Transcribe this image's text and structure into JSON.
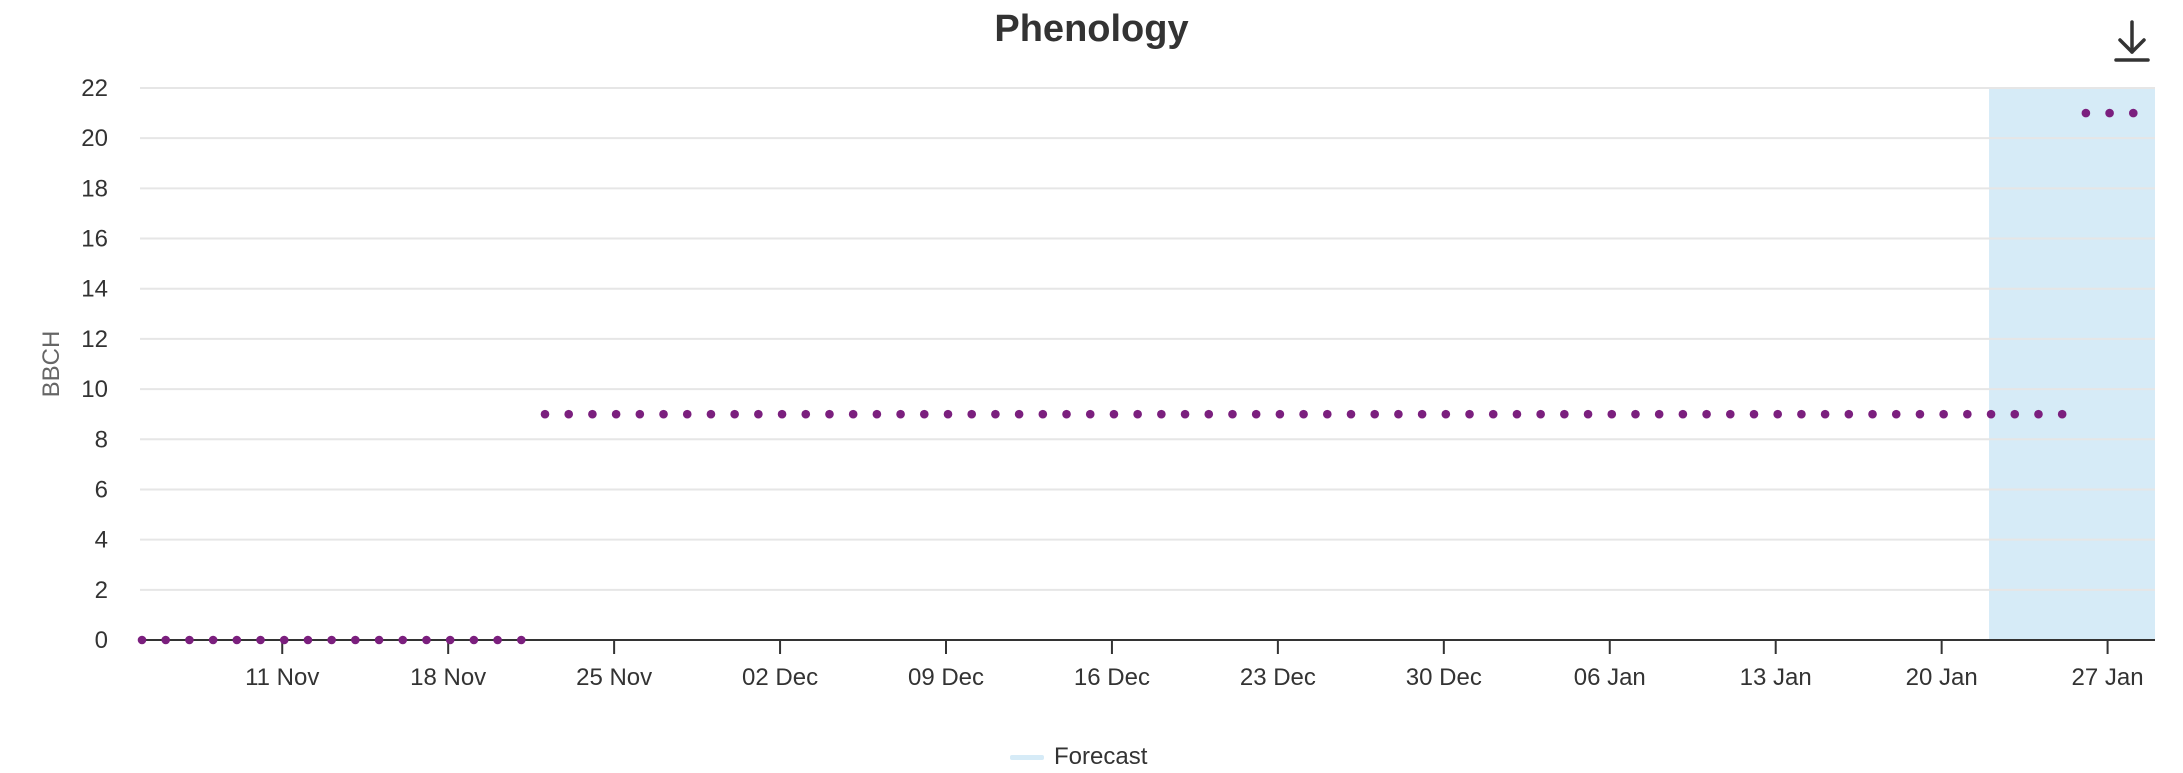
{
  "chart_data": {
    "type": "scatter",
    "title": "Phenology",
    "ylabel": "BBCH",
    "xlabel": "",
    "ylim": [
      0,
      22
    ],
    "y_ticks": [
      0,
      2,
      4,
      6,
      8,
      10,
      12,
      14,
      16,
      18,
      20,
      22
    ],
    "x_range": [
      "Nov 05",
      "Jan 29"
    ],
    "x_ticks": [
      {
        "date": "Nov 11",
        "label": "11 Nov"
      },
      {
        "date": "Nov 18",
        "label": "18 Nov"
      },
      {
        "date": "Nov 25",
        "label": "25 Nov"
      },
      {
        "date": "Dec 02",
        "label": "02 Dec"
      },
      {
        "date": "Dec 09",
        "label": "09 Dec"
      },
      {
        "date": "Dec 16",
        "label": "16 Dec"
      },
      {
        "date": "Dec 23",
        "label": "23 Dec"
      },
      {
        "date": "Dec 30",
        "label": "30 Dec"
      },
      {
        "date": "Jan 06",
        "label": "06 Jan"
      },
      {
        "date": "Jan 13",
        "label": "13 Jan"
      },
      {
        "date": "Jan 20",
        "label": "20 Jan"
      },
      {
        "date": "Jan 27",
        "label": "27 Jan"
      }
    ],
    "grid": true,
    "series": [
      {
        "color": "#7b1f7e",
        "segments": [
          {
            "from": "Nov 05",
            "to": "Nov 21",
            "value": 0
          },
          {
            "from": "Nov 22",
            "to": "Jan 25",
            "value": 9
          },
          {
            "from": "Jan 26",
            "to": "Jan 28",
            "value": 21
          }
        ]
      }
    ],
    "bands": [
      {
        "name": "Forecast",
        "from": "Jan 22",
        "to": "Jan 29",
        "color": "#d6ebf7"
      }
    ],
    "legend": {
      "position": "bottom-center",
      "items": [
        {
          "label": "Forecast",
          "color": "#d6ebf7"
        }
      ]
    }
  },
  "toolbar": {
    "download_icon": "download-icon"
  }
}
